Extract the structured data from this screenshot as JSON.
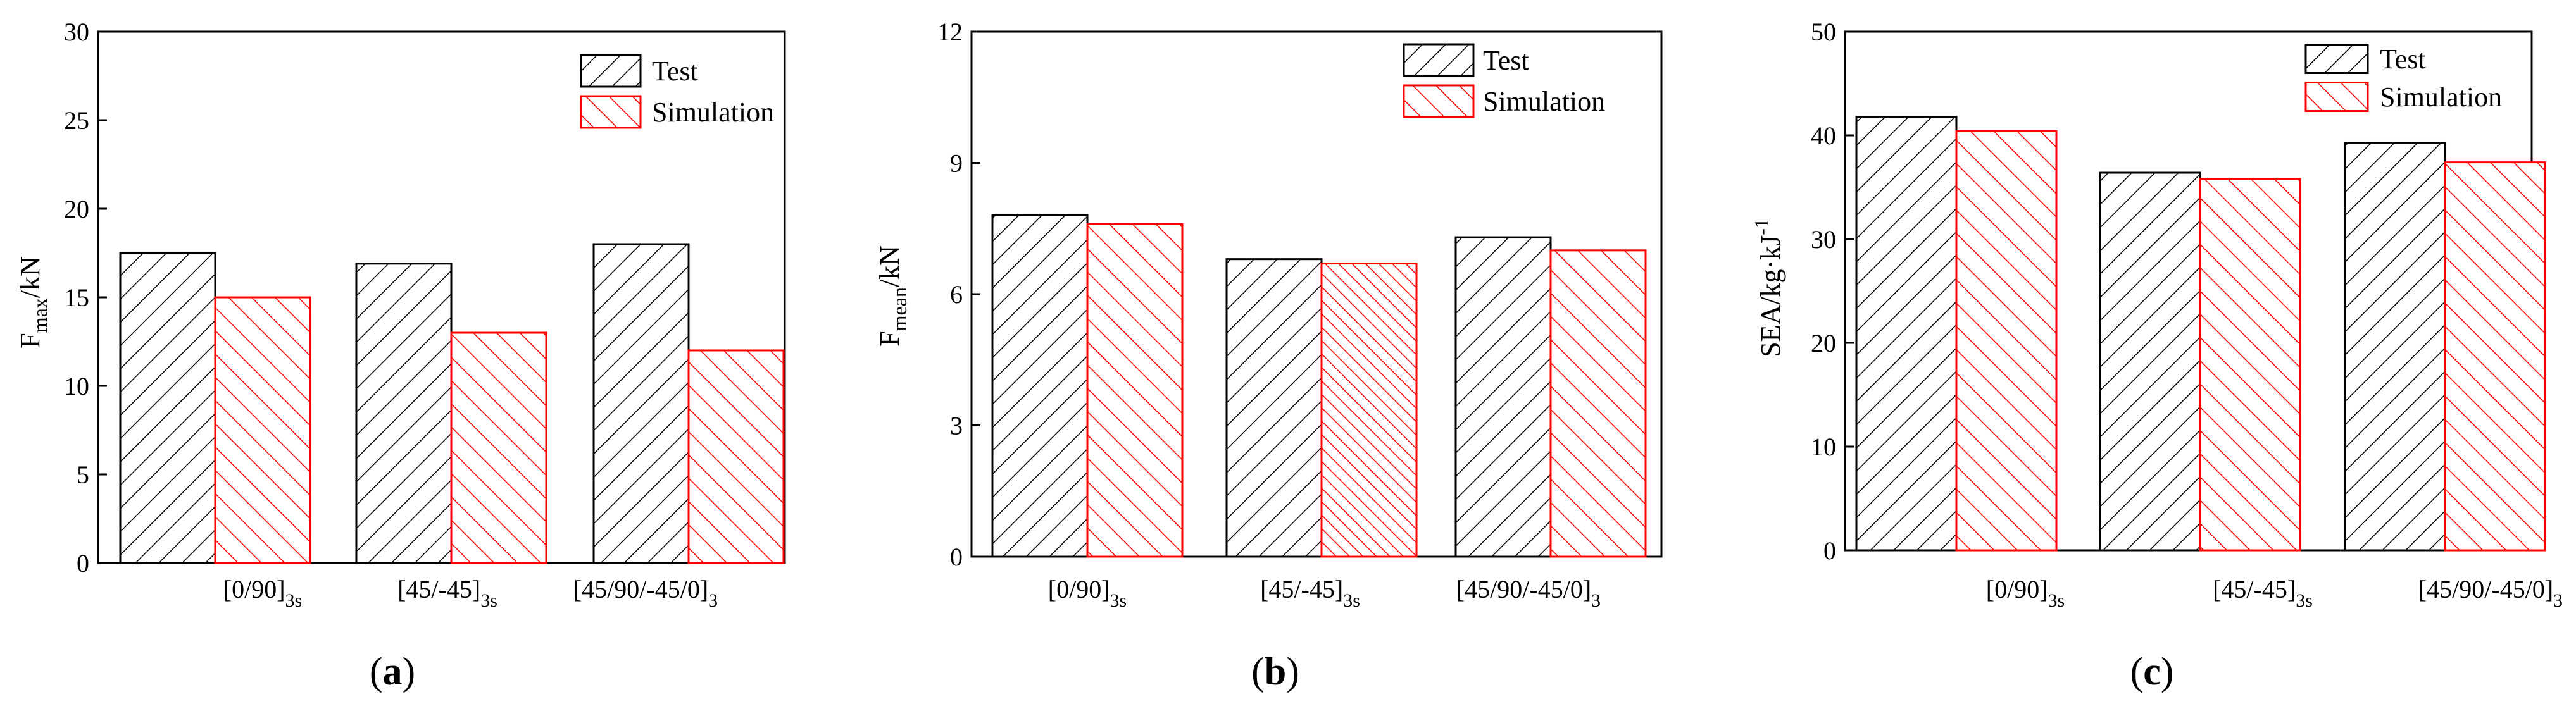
{
  "figure": {
    "colors": {
      "test": "#000000",
      "simulation": "#ff0000",
      "axis": "#000000",
      "background": "#ffffff"
    }
  },
  "chart_data": [
    {
      "type": "bar",
      "panel_label": "(a)",
      "panel_letter": "a",
      "ylabel": "Fmax/kN",
      "ylabel_main": "F",
      "ylabel_sub": "max",
      "ylabel_rest": "/kN",
      "ylim": [
        0,
        30
      ],
      "yticks": [
        0,
        5,
        10,
        15,
        20,
        25,
        30
      ],
      "categories": [
        {
          "main": "[0/90]",
          "sub": "3s"
        },
        {
          "main": "[45/-45]",
          "sub": "3s"
        },
        {
          "main": "[45/90/-45/0]",
          "sub": "3"
        }
      ],
      "legend": [
        "Test",
        "Simulation"
      ],
      "legend_position": "top-right",
      "series": [
        {
          "name": "Test",
          "values": [
            17.5,
            16.9,
            18.0
          ]
        },
        {
          "name": "Simulation",
          "values": [
            15.0,
            13.0,
            12.0
          ]
        }
      ]
    },
    {
      "type": "bar",
      "panel_label": "(b)",
      "panel_letter": "b",
      "ylabel": "Fmean/kN",
      "ylabel_main": "F",
      "ylabel_sub": "mean",
      "ylabel_rest": "/kN",
      "ylim": [
        0,
        12
      ],
      "yticks": [
        0,
        3,
        6,
        9,
        12
      ],
      "categories": [
        {
          "main": "[0/90]",
          "sub": "3s"
        },
        {
          "main": "[45/-45]",
          "sub": "3s"
        },
        {
          "main": "[45/90/-45/0]",
          "sub": "3"
        }
      ],
      "legend": [
        "Test",
        "Simulation"
      ],
      "legend_position": "top-right",
      "series": [
        {
          "name": "Test",
          "values": [
            7.8,
            6.8,
            7.3
          ]
        },
        {
          "name": "Simulation",
          "values": [
            7.6,
            6.7,
            7.0
          ]
        }
      ]
    },
    {
      "type": "bar",
      "panel_label": "(c)",
      "panel_letter": "c",
      "ylabel": "SEA/kg·kJ-1",
      "ylabel_main": "SEA/kg·kJ",
      "ylabel_sup": "-1",
      "ylim": [
        0,
        50
      ],
      "yticks": [
        0,
        10,
        20,
        30,
        40,
        50
      ],
      "categories": [
        {
          "main": "[0/90]",
          "sub": "3s"
        },
        {
          "main": "[45/-45]",
          "sub": "3s"
        },
        {
          "main": "[45/90/-45/0]",
          "sub": "3"
        }
      ],
      "legend": [
        "Test",
        "Simulation"
      ],
      "legend_position": "top-right",
      "series": [
        {
          "name": "Test",
          "values": [
            41.8,
            36.4,
            39.3
          ]
        },
        {
          "name": "Simulation",
          "values": [
            40.4,
            35.8,
            37.4
          ]
        }
      ]
    }
  ]
}
